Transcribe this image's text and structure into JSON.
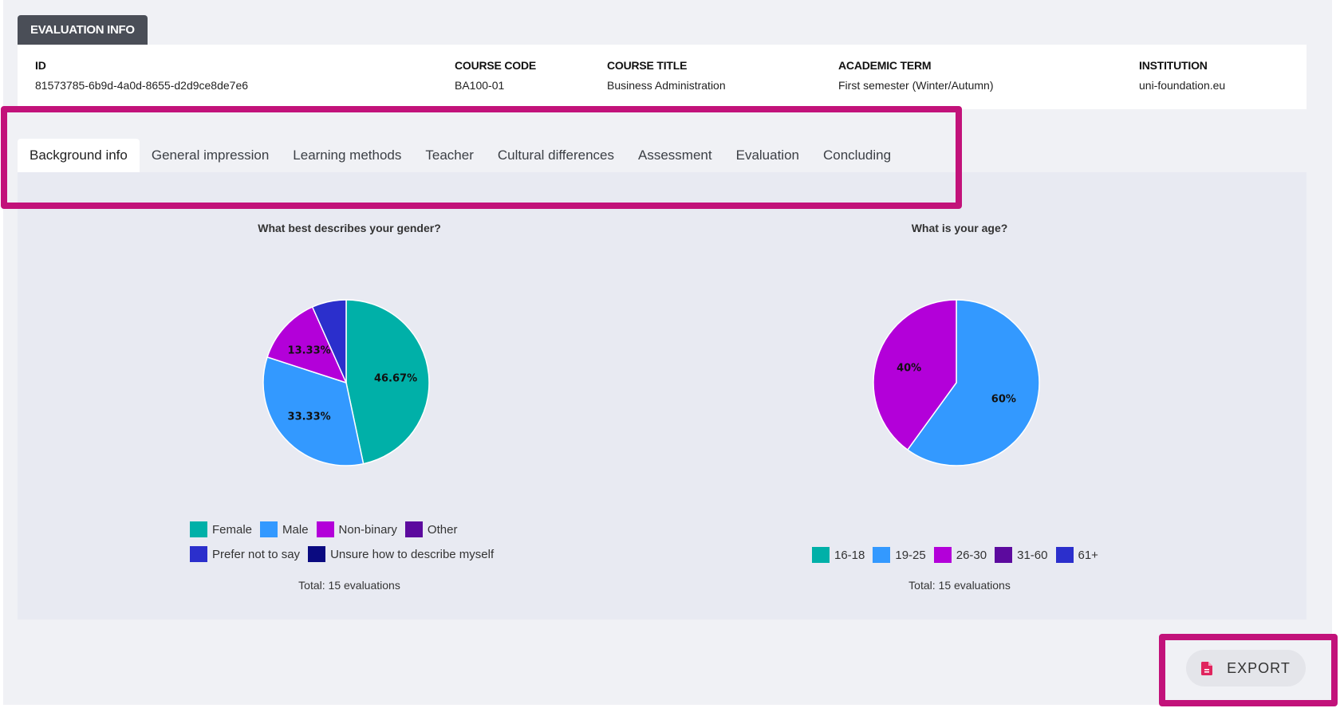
{
  "header": {
    "title": "EVALUATION INFO"
  },
  "info": {
    "id_label": "ID",
    "id_value": "81573785-6b9d-4a0d-8655-d2d9ce8de7e6",
    "course_code_label": "COURSE CODE",
    "course_code_value": "BA100-01",
    "course_title_label": "COURSE TITLE",
    "course_title_value": "Business Administration",
    "term_label": "ACADEMIC TERM",
    "term_value": "First semester (Winter/Autumn)",
    "institution_label": "INSTITUTION",
    "institution_value": "uni-foundation.eu"
  },
  "tabs": [
    {
      "label": "Background info",
      "active": true
    },
    {
      "label": "General impression",
      "active": false
    },
    {
      "label": "Learning methods",
      "active": false
    },
    {
      "label": "Teacher",
      "active": false
    },
    {
      "label": "Cultural differences",
      "active": false
    },
    {
      "label": "Assessment",
      "active": false
    },
    {
      "label": "Evaluation",
      "active": false
    },
    {
      "label": "Concluding",
      "active": false
    }
  ],
  "export": {
    "label": "EXPORT",
    "icon": "file-pdf-icon"
  },
  "colors": {
    "highlight": "#c2127a",
    "export_icon": "#e0245e"
  },
  "chart_data": [
    {
      "type": "pie",
      "title": "What best describes your gender?",
      "categories": [
        "Female",
        "Male",
        "Non-binary",
        "Other",
        "Prefer not to say",
        "Unsure how to describe myself"
      ],
      "values": [
        46.67,
        33.33,
        13.33,
        0,
        6.67,
        0
      ],
      "colors": [
        "#00b0a8",
        "#3399ff",
        "#b300d9",
        "#5c0a9e",
        "#2b2fcc",
        "#0a0a80"
      ],
      "labels": [
        "46.67%",
        "33.33%",
        "13.33%",
        "",
        "",
        ""
      ],
      "total_text": "Total: 15 evaluations",
      "legend": "bottom"
    },
    {
      "type": "pie",
      "title": "What is your age?",
      "categories": [
        "16-18",
        "19-25",
        "26-30",
        "31-60",
        "61+"
      ],
      "values": [
        0,
        60,
        40,
        0,
        0
      ],
      "colors": [
        "#00b0a8",
        "#3399ff",
        "#b300d9",
        "#5c0a9e",
        "#2b2fcc"
      ],
      "labels": [
        "",
        "60%",
        "40%",
        "",
        ""
      ],
      "total_text": "Total: 15 evaluations",
      "legend": "bottom"
    }
  ]
}
